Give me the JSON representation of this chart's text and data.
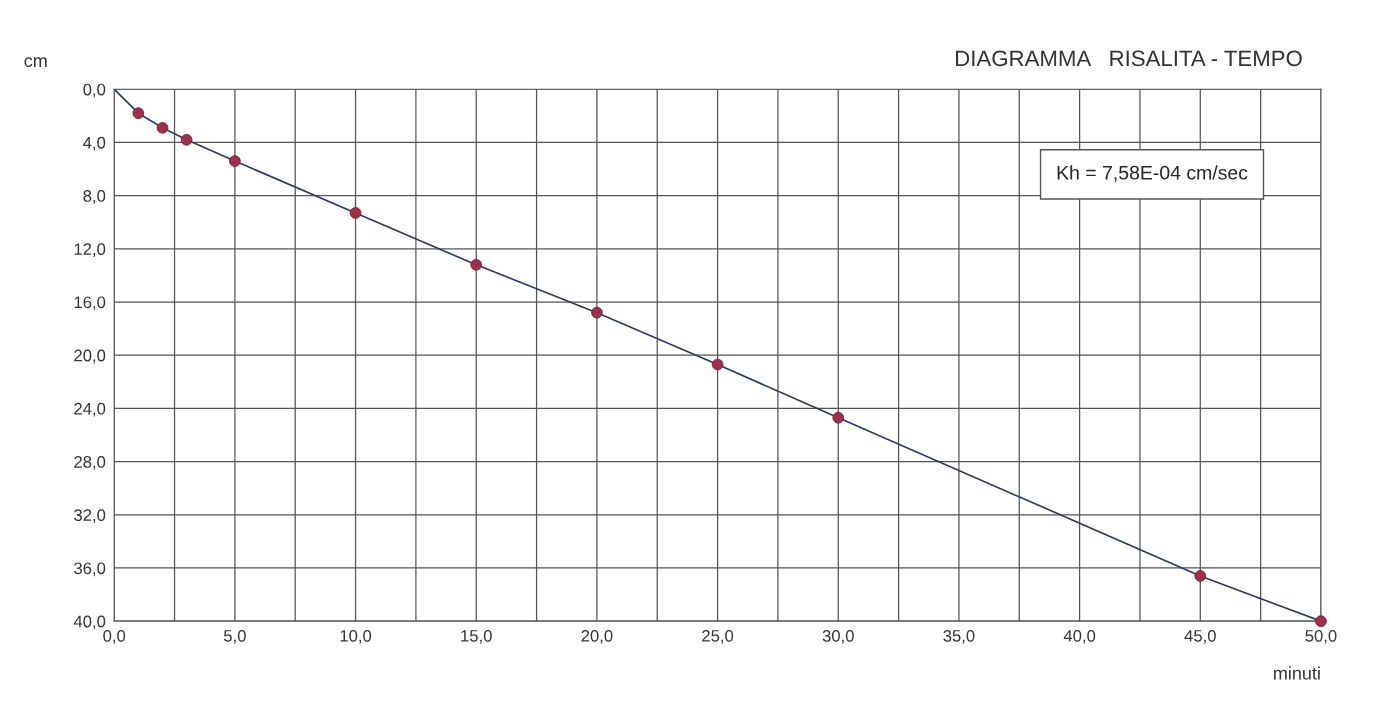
{
  "chart_data": {
    "type": "line",
    "title": "DIAGRAMMA   RISALITA - TEMPO",
    "xlabel": "minuti",
    "ylabel": "cm",
    "annotations": [
      "Kh = 7,58E-04 cm/sec"
    ],
    "series": [
      {
        "color": "#2b3a6b",
        "marker": "none",
        "x": [
          0,
          1,
          2,
          3,
          5,
          10,
          15,
          20,
          25,
          30,
          45,
          50
        ],
        "values": [
          0,
          1.8,
          2.9,
          3.8,
          5.4,
          9.3,
          13.2,
          16.8,
          20.7,
          24.7,
          36.6,
          40.0
        ]
      },
      {
        "type": "scatter",
        "color": "#a0304a",
        "marker": "circle",
        "x": [
          1,
          2,
          3,
          5,
          10,
          15,
          20,
          25,
          30,
          45,
          50
        ],
        "values": [
          1.8,
          2.9,
          3.8,
          5.4,
          9.3,
          13.2,
          16.8,
          20.7,
          24.7,
          36.6,
          40.0
        ]
      }
    ],
    "xlim": [
      0,
      50
    ],
    "ylim": [
      40,
      0
    ],
    "xticks": [
      {
        "value": 0,
        "label": "0,0"
      },
      {
        "value": 2.5,
        "label": null
      },
      {
        "value": 5,
        "label": "5,0"
      },
      {
        "value": 7.5,
        "label": null
      },
      {
        "value": 10,
        "label": "10,0"
      },
      {
        "value": 12.5,
        "label": null
      },
      {
        "value": 15,
        "label": "15,0"
      },
      {
        "value": 17.5,
        "label": null
      },
      {
        "value": 20,
        "label": "20,0"
      },
      {
        "value": 22.5,
        "label": null
      },
      {
        "value": 25,
        "label": "25,0"
      },
      {
        "value": 27.5,
        "label": null
      },
      {
        "value": 30,
        "label": "30,0"
      },
      {
        "value": 32.5,
        "label": null
      },
      {
        "value": 35,
        "label": "35,0"
      },
      {
        "value": 37.5,
        "label": null
      },
      {
        "value": 40,
        "label": "40,0"
      },
      {
        "value": 42.5,
        "label": null
      },
      {
        "value": 45,
        "label": "45,0"
      },
      {
        "value": 47.5,
        "label": null
      },
      {
        "value": 50,
        "label": "50,0"
      }
    ],
    "yticks": [
      {
        "value": 0,
        "label": "0,0"
      },
      {
        "value": 4,
        "label": "4,0"
      },
      {
        "value": 8,
        "label": "8,0"
      },
      {
        "value": 12,
        "label": "12,0"
      },
      {
        "value": 16,
        "label": "16,0"
      },
      {
        "value": 20,
        "label": "20,0"
      },
      {
        "value": 24,
        "label": "24,0"
      },
      {
        "value": 28,
        "label": "28,0"
      },
      {
        "value": 32,
        "label": "32,0"
      },
      {
        "value": 36,
        "label": "36,0"
      },
      {
        "value": 40,
        "label": "40,0"
      }
    ],
    "grid": true,
    "legend": false
  }
}
